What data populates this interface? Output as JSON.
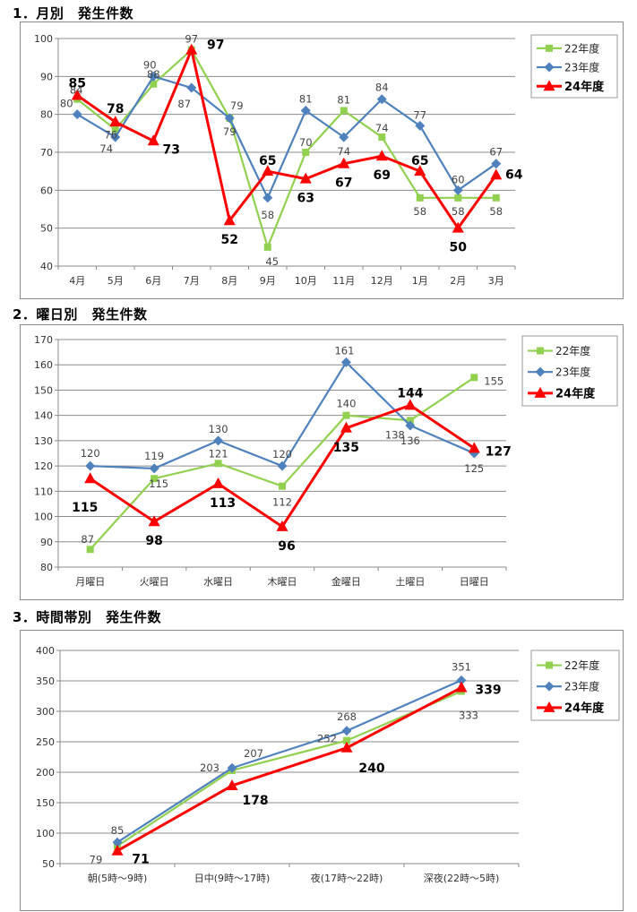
{
  "chart_data": [
    {
      "id": "monthly",
      "type": "line",
      "title": "1．月別　発生件数",
      "categories": [
        "4月",
        "5月",
        "6月",
        "7月",
        "8月",
        "9月",
        "10月",
        "11月",
        "12月",
        "1月",
        "2月",
        "3月"
      ],
      "ylim": [
        40,
        100
      ],
      "ystep": 10,
      "grid": true,
      "legend_position": "top-right",
      "series": [
        {
          "name": "22年度",
          "color": "#92d050",
          "marker": "square",
          "values": [
            84,
            76,
            88,
            97,
            79,
            45,
            70,
            81,
            74,
            58,
            58,
            58
          ],
          "labels": [
            "84",
            "76",
            "88",
            "97",
            "79",
            "45",
            "70",
            "81",
            "74",
            "58",
            "58",
            "58"
          ]
        },
        {
          "name": "23年度",
          "color": "#4f81bd",
          "marker": "diamond",
          "values": [
            80,
            74,
            90,
            87,
            79,
            58,
            81,
            74,
            84,
            77,
            60,
            67
          ],
          "labels": [
            "80",
            "74",
            "90",
            "87",
            "79",
            "58",
            "81",
            "74",
            "84",
            "77",
            "60",
            "67"
          ]
        },
        {
          "name": "24年度",
          "color": "#ff0000",
          "marker": "triangle",
          "values": [
            85,
            78,
            73,
            97,
            52,
            65,
            63,
            67,
            69,
            65,
            50,
            64
          ],
          "labels": [
            "85",
            "78",
            "73",
            "97",
            "52",
            "65",
            "63",
            "67",
            "69",
            "65",
            "50",
            "64"
          ]
        }
      ]
    },
    {
      "id": "weekday",
      "type": "line",
      "title": "2．曜日別　発生件数",
      "categories": [
        "月曜日",
        "火曜日",
        "水曜日",
        "木曜日",
        "金曜日",
        "土曜日",
        "日曜日"
      ],
      "ylim": [
        80,
        170
      ],
      "ystep": 10,
      "grid": true,
      "legend_position": "top-right",
      "series": [
        {
          "name": "22年度",
          "color": "#92d050",
          "marker": "square",
          "values": [
            87,
            115,
            121,
            112,
            140,
            138,
            155
          ],
          "labels": [
            "87",
            "115",
            "121",
            "112",
            "140",
            "138",
            "155"
          ]
        },
        {
          "name": "23年度",
          "color": "#4f81bd",
          "marker": "diamond",
          "values": [
            120,
            119,
            130,
            120,
            161,
            136,
            125
          ],
          "labels": [
            "120",
            "119",
            "130",
            "120",
            "161",
            "136",
            "125"
          ]
        },
        {
          "name": "24年度",
          "color": "#ff0000",
          "marker": "triangle",
          "values": [
            115,
            98,
            113,
            96,
            135,
            144,
            127
          ],
          "labels": [
            "115",
            "98",
            "113",
            "96",
            "135",
            "144",
            "127"
          ]
        }
      ]
    },
    {
      "id": "timeband",
      "type": "line",
      "title": "3．時間帯別　発生件数",
      "categories": [
        "朝(5時～9時)",
        "日中(9時～17時)",
        "夜(17時～22時)",
        "深夜(22時～5時)"
      ],
      "ylim": [
        50,
        400
      ],
      "ystep": 50,
      "grid": true,
      "legend_position": "top-right",
      "series": [
        {
          "name": "22年度",
          "color": "#92d050",
          "marker": "square",
          "values": [
            79,
            203,
            252,
            333
          ],
          "labels": [
            "79",
            "203",
            "252",
            "333"
          ]
        },
        {
          "name": "23年度",
          "color": "#4f81bd",
          "marker": "diamond",
          "values": [
            85,
            207,
            268,
            351
          ],
          "labels": [
            "85",
            "207",
            "268",
            "351"
          ]
        },
        {
          "name": "24年度",
          "color": "#ff0000",
          "marker": "triangle",
          "values": [
            71,
            178,
            240,
            339
          ],
          "labels": [
            "71",
            "178",
            "240",
            "339"
          ]
        }
      ]
    }
  ]
}
